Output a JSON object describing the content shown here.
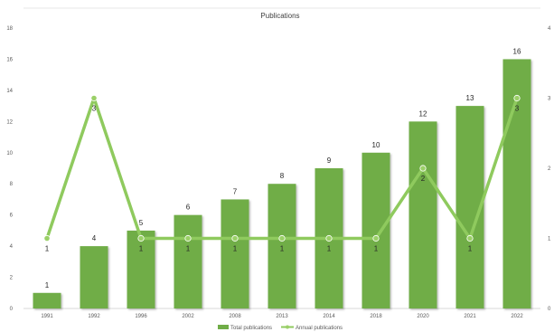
{
  "chart_data": {
    "type": "bar",
    "title": "Publications",
    "categories": [
      "1991",
      "1992",
      "1996",
      "2002",
      "2008",
      "2013",
      "2014",
      "2018",
      "2020",
      "2021",
      "2022"
    ],
    "series": [
      {
        "name": "Total publications",
        "type": "bar",
        "axis": "left",
        "values": [
          1,
          4,
          5,
          6,
          7,
          8,
          9,
          10,
          12,
          13,
          16
        ]
      },
      {
        "name": "Annual publications",
        "type": "line",
        "axis": "right",
        "values": [
          1,
          3,
          1,
          1,
          1,
          1,
          1,
          1,
          2,
          1,
          3
        ]
      }
    ],
    "ylim_left": [
      0,
      18
    ],
    "yticks_left": [
      0,
      2,
      4,
      6,
      8,
      10,
      12,
      14,
      16,
      18
    ],
    "ylim_right": [
      0,
      4
    ],
    "yticks_right": [
      0,
      1,
      2,
      3,
      4
    ],
    "grid": false,
    "legend_position": "bottom",
    "colors": {
      "bar": "#70ad47",
      "line": "#8fca5e",
      "marker": "#9bd068"
    }
  }
}
